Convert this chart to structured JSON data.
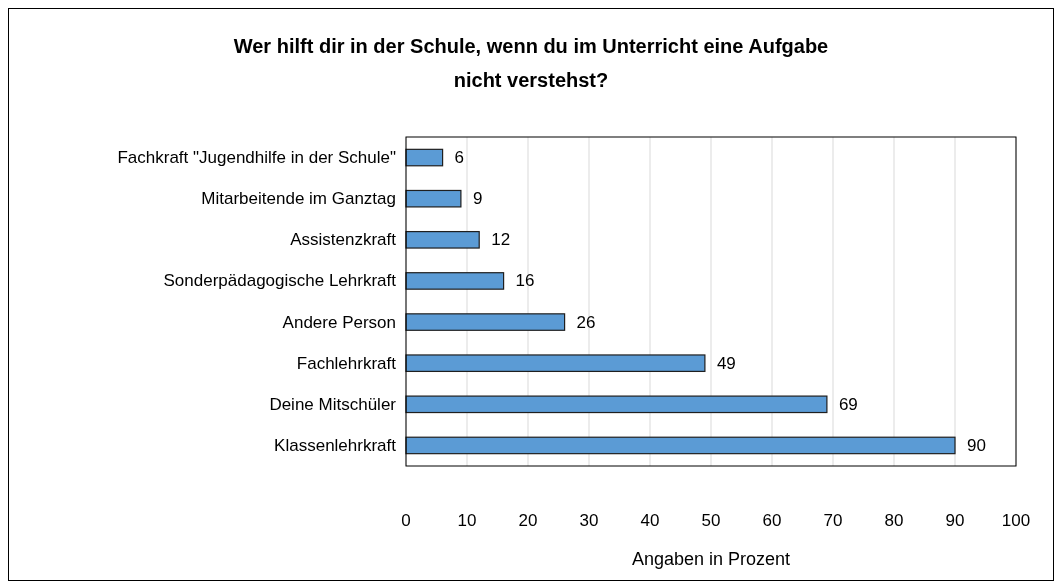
{
  "chart_data": {
    "type": "bar",
    "orientation": "horizontal",
    "title": "Wer hilft dir in der Schule, wenn du im Unterricht eine Aufgabe nicht verstehst?",
    "xlabel": "Angaben in Prozent",
    "categories": [
      "Fachkraft \"Jugendhilfe in der Schule\"",
      "Mitarbeitende im Ganztag",
      "Assistenzkraft",
      "Sonderpädagogische Lehrkraft",
      "Andere Person",
      "Fachlehrkraft",
      "Deine Mitschüler",
      "Klassenlehrkraft"
    ],
    "values": [
      6,
      9,
      12,
      16,
      26,
      49,
      69,
      90
    ],
    "color": "#5b9bd5",
    "data_labels": true,
    "xlim": [
      0,
      100
    ],
    "xticks": [
      0,
      10,
      20,
      30,
      40,
      50,
      60,
      70,
      80,
      90,
      100
    ],
    "grid": "x"
  }
}
